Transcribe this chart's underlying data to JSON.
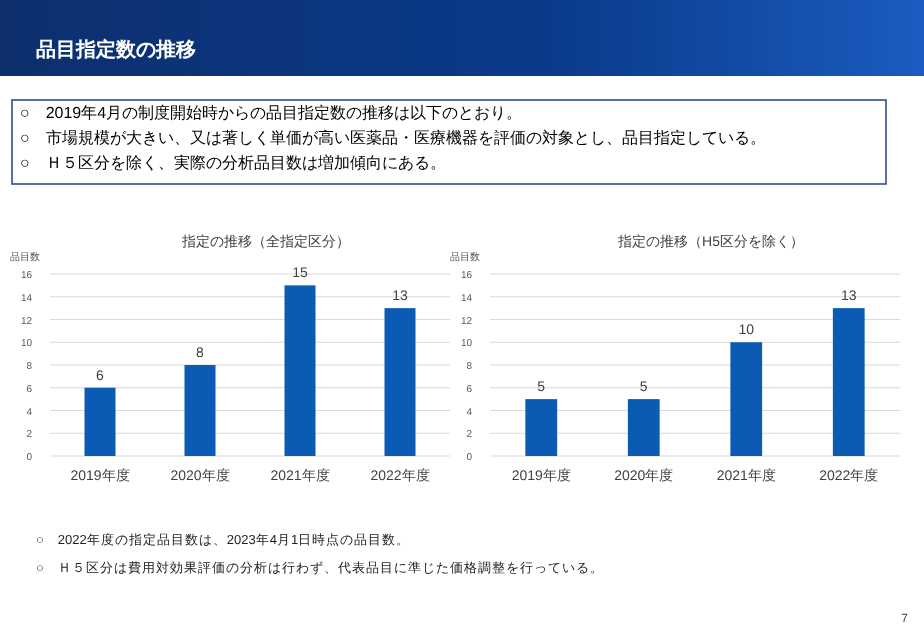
{
  "chart_data": [
    {
      "type": "bar",
      "title": "指定の推移（全指定区分）",
      "ylabel": "品目数",
      "categories": [
        "2019年度",
        "2020年度",
        "2021年度",
        "2022年度"
      ],
      "values": [
        6,
        8,
        15,
        13
      ],
      "color": "#0b5bb5",
      "ylim": [
        0,
        16
      ],
      "yticks": [
        0,
        2,
        4,
        6,
        8,
        10,
        12,
        14,
        16
      ],
      "grid": "y",
      "data_labels": true,
      "annotations": [
        "品目指定数の推移",
        "○　2019年4月の制度開始時からの品目指定数の推移は以下のとおり。",
        "○　市場規模が大きい、又は著しく単価が高い医薬品・医療機器を評価の対象とし、品目指定している。",
        "○　Ｈ５区分を除く、実際の分析品目数は増加傾向にある。"
      ]
    },
    {
      "type": "bar",
      "title": "指定の推移（H5区分を除く）",
      "ylabel": "品目数",
      "categories": [
        "2019年度",
        "2020年度",
        "2021年度",
        "2022年度"
      ],
      "values": [
        5,
        5,
        10,
        13
      ],
      "color": "#0b5bb5",
      "ylim": [
        0,
        16
      ],
      "yticks": [
        0,
        2,
        4,
        6,
        8,
        10,
        12,
        14,
        16
      ],
      "grid": "y",
      "data_labels": true,
      "annotations": [
        "○　2022年度の指定品目数は、2023年4月1日時点の品目数。",
        "○　Ｈ５区分は費用対効果評価の分析は行わず、代表品目に準じた価格調整を行っている。",
        "7"
      ]
    }
  ]
}
